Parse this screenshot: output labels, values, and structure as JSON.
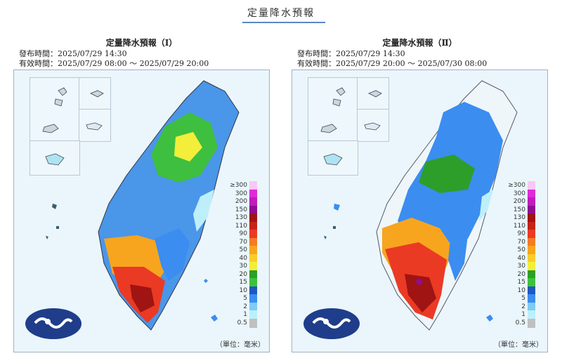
{
  "page": {
    "title": "定量降水預報"
  },
  "panels": [
    {
      "title": "定量降水預報（Ⅰ）",
      "issued": "發布時間：2025/07/29 14:30",
      "valid": "有效時間：2025/07/29 08:00 ～ 2025/07/29 20:00",
      "unit": "（單位：毫米）"
    },
    {
      "title": "定量降水預報（Ⅱ）",
      "issued": "發布時間：2025/07/29 14:30",
      "valid": "有效時間：2025/07/29 20:00 ～ 2025/07/30 08:00",
      "unit": "（單位：毫米）"
    }
  ],
  "legend": {
    "labels": [
      "≥300",
      "300",
      "200",
      "150",
      "130",
      "110",
      "90",
      "70",
      "50",
      "40",
      "30",
      "20",
      "15",
      "10",
      "5",
      "2",
      "1",
      "0.5"
    ],
    "colors": [
      "#f8c8f4",
      "#e02ad9",
      "#c01cbe",
      "#8d0f90",
      "#a01414",
      "#c62217",
      "#ea3a24",
      "#f47b22",
      "#f7a51f",
      "#f7cd2b",
      "#f3ee3a",
      "#2d9e2a",
      "#3bc43a",
      "#1f57c3",
      "#3b8df0",
      "#7ecbf4",
      "#bdeffb",
      "#c0c0c0"
    ]
  },
  "icons": {
    "logo": "cwa-logo-icon"
  }
}
